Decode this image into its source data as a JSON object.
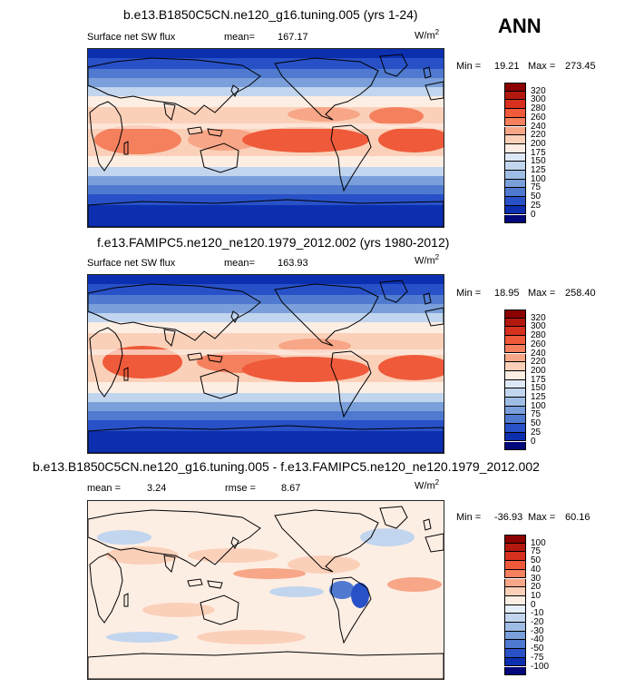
{
  "season": "ANN",
  "panels": [
    {
      "title": "b.e13.B1850C5CN.ne120_g16.tuning.005 (yrs 1-24)",
      "variable": "Surface net SW flux",
      "stat1_label": "mean=",
      "stat1_value": "167.17",
      "unit": "W/m",
      "unit_exp": "2",
      "min_label": "Min =",
      "min_value": "19.21",
      "max_label": "Max =",
      "max_value": "273.45"
    },
    {
      "title": "f.e13.FAMIPC5.ne120_ne120.1979_2012.002 (yrs 1980-2012)",
      "variable": "Surface net SW flux",
      "stat1_label": "mean=",
      "stat1_value": "163.93",
      "unit": "W/m",
      "unit_exp": "2",
      "min_label": "Min =",
      "min_value": "18.95",
      "max_label": "Max =",
      "max_value": "258.40"
    },
    {
      "title": "b.e13.B1850C5CN.ne120_g16.tuning.005 - f.e13.FAMIPC5.ne120_ne120.1979_2012.002",
      "stat1_label": "mean =",
      "stat1_value": "3.24",
      "stat2_label": "rmse =",
      "stat2_value": "8.67",
      "unit": "W/m",
      "unit_exp": "2",
      "min_label": "Min =",
      "min_value": "-36.93",
      "max_label": "Max =",
      "max_value": "60.16"
    }
  ],
  "colorbars": {
    "abs_levels": [
      "320",
      "300",
      "280",
      "260",
      "240",
      "220",
      "200",
      "175",
      "150",
      "125",
      "100",
      "75",
      "50",
      "25",
      "0"
    ],
    "abs_colors": [
      "#8b0000",
      "#b2180e",
      "#d7301f",
      "#ef5a3a",
      "#f4805e",
      "#f7a687",
      "#fbd0b9",
      "#fdeee4",
      "#dde8f5",
      "#c2d5ee",
      "#9fbce4",
      "#7a9fda",
      "#4f7ad0",
      "#2851c8",
      "#0c2fb0",
      "#00087a"
    ],
    "diff_levels": [
      "100",
      "75",
      "50",
      "40",
      "30",
      "20",
      "10",
      "0",
      "-10",
      "-20",
      "-30",
      "-40",
      "-50",
      "-75",
      "-100"
    ],
    "diff_colors": [
      "#8b0000",
      "#b2180e",
      "#d7301f",
      "#ef5a3a",
      "#f4805e",
      "#f7a687",
      "#fbd0b9",
      "#fdeee4",
      "#e6eef9",
      "#c2d5ee",
      "#9fbce4",
      "#7a9fda",
      "#4f7ad0",
      "#2851c8",
      "#0c2fb0",
      "#00087a"
    ]
  }
}
